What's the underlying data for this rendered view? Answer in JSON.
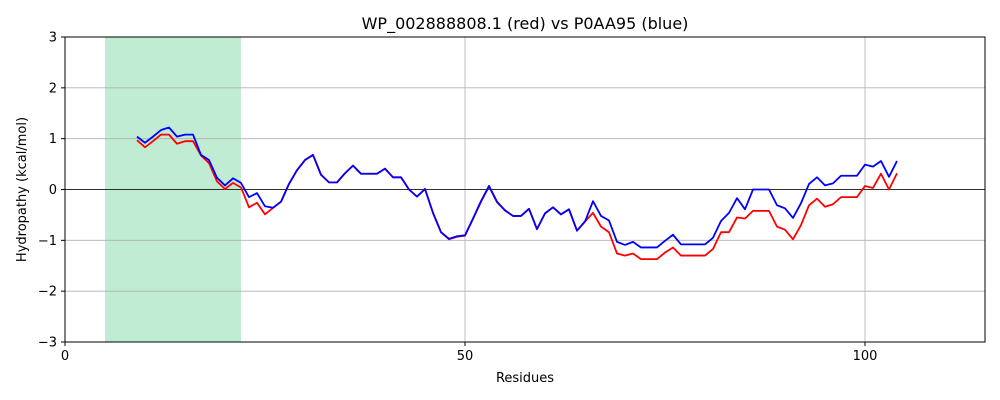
{
  "chart_data": {
    "type": "line",
    "title": "WP_002888808.1 (red) vs P0AA95 (blue)",
    "xlabel": "Residues",
    "ylabel": "Hydropathy (kcal/mol)",
    "xlim": [
      0,
      115
    ],
    "ylim": [
      -3,
      3
    ],
    "xticks": [
      0,
      50,
      100
    ],
    "yticks": [
      -3,
      -2,
      -1,
      0,
      1,
      2,
      3
    ],
    "grid": true,
    "zero_line": true,
    "shaded_region": {
      "x_start": 5,
      "x_end": 22,
      "color": "#c0ecd3"
    },
    "x": [
      9,
      10,
      11,
      12,
      13,
      14,
      15,
      16,
      17,
      18,
      19,
      20,
      21,
      22,
      23,
      24,
      25,
      26,
      27,
      28,
      29,
      30,
      31,
      32,
      33,
      34,
      35,
      36,
      37,
      38,
      39,
      40,
      41,
      42,
      43,
      44,
      45,
      46,
      47,
      48,
      49,
      50,
      51,
      52,
      53,
      54,
      55,
      56,
      57,
      58,
      59,
      60,
      61,
      62,
      63,
      64,
      65,
      66,
      67,
      68,
      69,
      70,
      71,
      72,
      73,
      74,
      75,
      76,
      77,
      78,
      79,
      80,
      81,
      82,
      83,
      84,
      85,
      86,
      87,
      88,
      89,
      90,
      91,
      92,
      93,
      94,
      95,
      96,
      97,
      98,
      99,
      100,
      101,
      102,
      103,
      104
    ],
    "series": [
      {
        "name": "WP_002888808.1",
        "color": "#ff0000",
        "values": [
          0.97,
          0.83,
          0.95,
          1.08,
          1.08,
          0.9,
          0.95,
          0.95,
          0.67,
          0.52,
          0.16,
          0.01,
          0.13,
          0.04,
          -0.35,
          -0.26,
          -0.49,
          -0.36,
          -0.24,
          0.11,
          0.38,
          0.58,
          0.68,
          0.29,
          0.14,
          0.14,
          0.32,
          0.47,
          0.31,
          0.31,
          0.31,
          0.41,
          0.24,
          0.24,
          0.0,
          -0.14,
          0.01,
          -0.46,
          -0.84,
          -0.98,
          -0.93,
          -0.91,
          -0.58,
          -0.24,
          0.06,
          -0.25,
          -0.41,
          -0.52,
          -0.52,
          -0.38,
          -0.78,
          -0.47,
          -0.35,
          -0.49,
          -0.39,
          -0.81,
          -0.63,
          -0.46,
          -0.73,
          -0.84,
          -1.26,
          -1.3,
          -1.26,
          -1.37,
          -1.37,
          -1.37,
          -1.24,
          -1.14,
          -1.3,
          -1.3,
          -1.3,
          -1.3,
          -1.17,
          -0.84,
          -0.84,
          -0.55,
          -0.57,
          -0.42,
          -0.42,
          -0.42,
          -0.73,
          -0.79,
          -0.98,
          -0.7,
          -0.31,
          -0.18,
          -0.34,
          -0.29,
          -0.15,
          -0.15,
          -0.15,
          0.07,
          0.03,
          0.31,
          0.0,
          0.32
        ]
      },
      {
        "name": "P0AA95",
        "color": "#0000ff",
        "values": [
          1.04,
          0.92,
          1.04,
          1.17,
          1.22,
          1.04,
          1.08,
          1.08,
          0.68,
          0.58,
          0.23,
          0.08,
          0.22,
          0.13,
          -0.15,
          -0.07,
          -0.33,
          -0.36,
          -0.24,
          0.11,
          0.38,
          0.58,
          0.68,
          0.29,
          0.14,
          0.14,
          0.32,
          0.47,
          0.31,
          0.31,
          0.31,
          0.41,
          0.24,
          0.24,
          0.0,
          -0.14,
          0.01,
          -0.46,
          -0.84,
          -0.97,
          -0.92,
          -0.9,
          -0.57,
          -0.23,
          0.07,
          -0.24,
          -0.41,
          -0.52,
          -0.52,
          -0.38,
          -0.78,
          -0.47,
          -0.35,
          -0.49,
          -0.39,
          -0.81,
          -0.63,
          -0.23,
          -0.52,
          -0.61,
          -1.03,
          -1.09,
          -1.03,
          -1.14,
          -1.14,
          -1.14,
          -1.01,
          -0.89,
          -1.08,
          -1.08,
          -1.08,
          -1.08,
          -0.95,
          -0.62,
          -0.46,
          -0.17,
          -0.39,
          0.0,
          0.0,
          0.0,
          -0.31,
          -0.37,
          -0.56,
          -0.27,
          0.11,
          0.24,
          0.08,
          0.12,
          0.27,
          0.27,
          0.27,
          0.49,
          0.45,
          0.56,
          0.25,
          0.56
        ]
      }
    ]
  }
}
